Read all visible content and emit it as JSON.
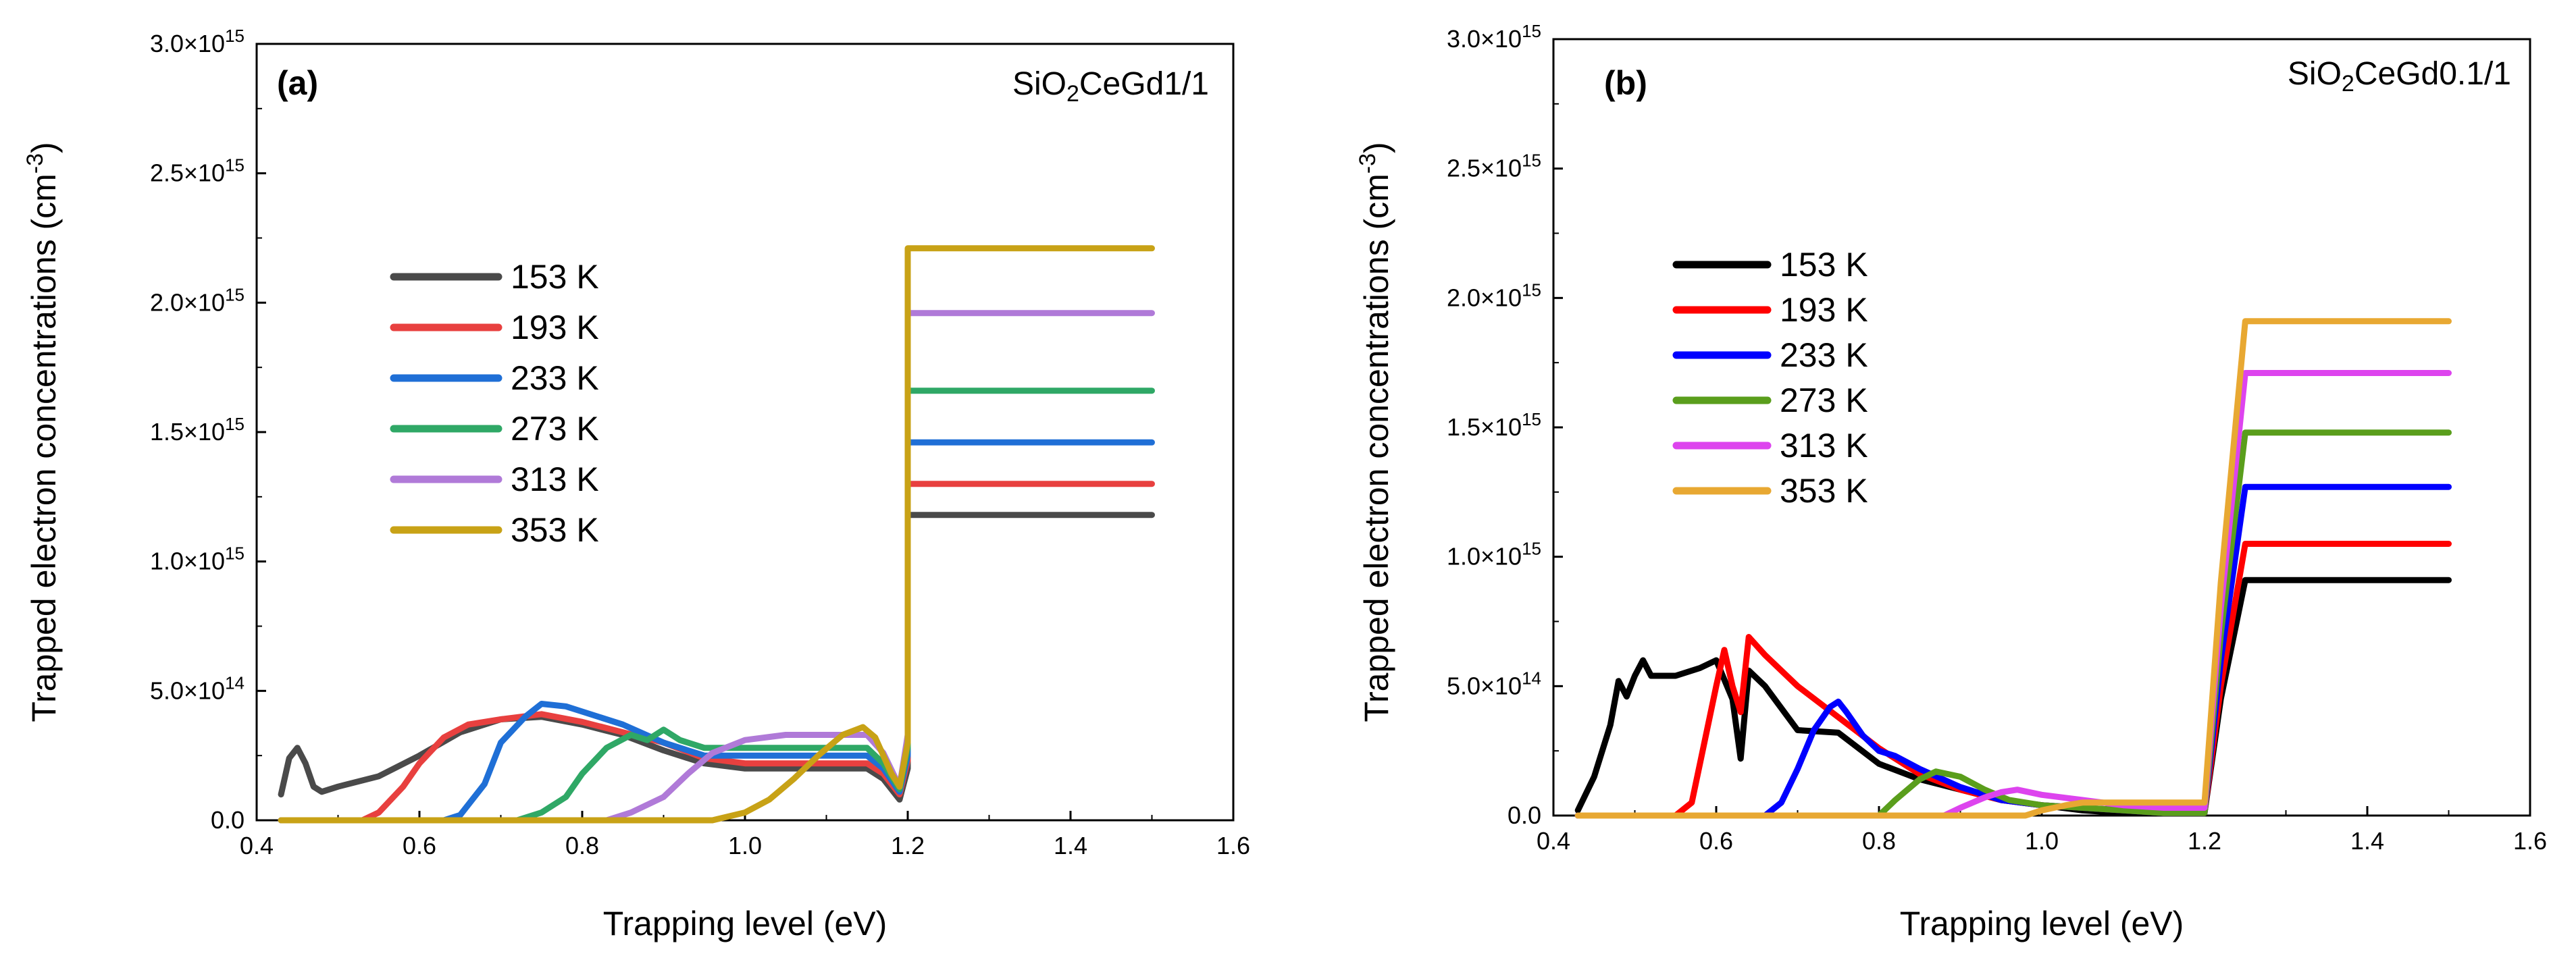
{
  "chart_data": [
    {
      "type": "line",
      "panel": "(a)",
      "sample_label": {
        "main": "SiO",
        "sub": "2",
        "rest": "CeGd1/1"
      },
      "xlabel": "Trapping level (eV)",
      "ylabel": {
        "main": "Trapped electron concentrations (cm",
        "sup": "-3",
        "close": ")"
      },
      "xlim": [
        0.4,
        1.6
      ],
      "ylim": [
        0,
        3000000000000000.0
      ],
      "xticks": [
        0.4,
        0.6,
        0.8,
        1.0,
        1.2,
        1.4,
        1.6
      ],
      "xtick_labels": [
        "0.4",
        "0.6",
        "0.8",
        "1.0",
        "1.2",
        "1.4",
        "1.6"
      ],
      "yticks": [
        {
          "value": 0,
          "mant": "0.0",
          "exp": ""
        },
        {
          "value": 500000000000000.0,
          "mant": "5.0×10",
          "exp": "14"
        },
        {
          "value": 1000000000000000.0,
          "mant": "1.0×10",
          "exp": "15"
        },
        {
          "value": 1500000000000000.0,
          "mant": "1.5×10",
          "exp": "15"
        },
        {
          "value": 2000000000000000.0,
          "mant": "2.0×10",
          "exp": "15"
        },
        {
          "value": 2500000000000000.0,
          "mant": "2.5×10",
          "exp": "15"
        },
        {
          "value": 3000000000000000.0,
          "mant": "3.0×10",
          "exp": "15"
        }
      ],
      "legend_position": "center-left",
      "series": [
        {
          "name": "153 K",
          "color": "#4a4a4a",
          "x": [
            0.43,
            0.44,
            0.45,
            0.46,
            0.47,
            0.48,
            0.5,
            0.55,
            0.6,
            0.65,
            0.7,
            0.75,
            0.8,
            0.85,
            0.9,
            0.95,
            1.0,
            1.05,
            1.1,
            1.15,
            1.17,
            1.19,
            1.2,
            1.2,
            1.5
          ],
          "y": [
            100000000000000.0,
            240000000000000.0,
            280000000000000.0,
            220000000000000.0,
            130000000000000.0,
            110000000000000.0,
            130000000000000.0,
            170000000000000.0,
            250000000000000.0,
            340000000000000.0,
            390000000000000.0,
            400000000000000.0,
            370000000000000.0,
            330000000000000.0,
            270000000000000.0,
            220000000000000.0,
            200000000000000.0,
            200000000000000.0,
            200000000000000.0,
            200000000000000.0,
            160000000000000.0,
            80000000000000.0,
            200000000000000.0,
            1180000000000000.0,
            1180000000000000.0
          ]
        },
        {
          "name": "193 K",
          "color": "#e8403f",
          "x": [
            0.43,
            0.53,
            0.55,
            0.58,
            0.6,
            0.63,
            0.66,
            0.7,
            0.75,
            0.8,
            0.85,
            0.9,
            0.95,
            1.0,
            1.05,
            1.1,
            1.15,
            1.17,
            1.19,
            1.2,
            1.2,
            1.5
          ],
          "y": [
            0,
            0,
            30000000000000.0,
            130000000000000.0,
            220000000000000.0,
            320000000000000.0,
            370000000000000.0,
            390000000000000.0,
            410000000000000.0,
            380000000000000.0,
            340000000000000.0,
            300000000000000.0,
            240000000000000.0,
            220000000000000.0,
            220000000000000.0,
            220000000000000.0,
            220000000000000.0,
            180000000000000.0,
            100000000000000.0,
            230000000000000.0,
            1300000000000000.0,
            1300000000000000.0
          ]
        },
        {
          "name": "233 K",
          "color": "#1f6fd6",
          "x": [
            0.43,
            0.63,
            0.65,
            0.68,
            0.7,
            0.73,
            0.75,
            0.78,
            0.8,
            0.85,
            0.9,
            0.95,
            1.0,
            1.05,
            1.1,
            1.15,
            1.17,
            1.19,
            1.2,
            1.2,
            1.5
          ],
          "y": [
            0,
            0,
            20000000000000.0,
            140000000000000.0,
            300000000000000.0,
            400000000000000.0,
            450000000000000.0,
            440000000000000.0,
            420000000000000.0,
            370000000000000.0,
            300000000000000.0,
            250000000000000.0,
            250000000000000.0,
            250000000000000.0,
            250000000000000.0,
            250000000000000.0,
            200000000000000.0,
            110000000000000.0,
            250000000000000.0,
            1460000000000000.0,
            1460000000000000.0
          ]
        },
        {
          "name": "273 K",
          "color": "#2fa866",
          "x": [
            0.43,
            0.72,
            0.75,
            0.78,
            0.8,
            0.83,
            0.86,
            0.88,
            0.9,
            0.92,
            0.95,
            1.0,
            1.05,
            1.1,
            1.15,
            1.17,
            1.19,
            1.2,
            1.2,
            1.5
          ],
          "y": [
            0,
            0,
            30000000000000.0,
            90000000000000.0,
            180000000000000.0,
            280000000000000.0,
            330000000000000.0,
            310000000000000.0,
            350000000000000.0,
            310000000000000.0,
            280000000000000.0,
            280000000000000.0,
            280000000000000.0,
            280000000000000.0,
            280000000000000.0,
            220000000000000.0,
            120000000000000.0,
            280000000000000.0,
            1660000000000000.0,
            1660000000000000.0
          ]
        },
        {
          "name": "313 K",
          "color": "#b07ad8",
          "x": [
            0.43,
            0.83,
            0.86,
            0.9,
            0.93,
            0.96,
            1.0,
            1.05,
            1.1,
            1.15,
            1.17,
            1.19,
            1.2,
            1.2,
            1.5
          ],
          "y": [
            0,
            0,
            30000000000000.0,
            90000000000000.0,
            180000000000000.0,
            260000000000000.0,
            310000000000000.0,
            330000000000000.0,
            330000000000000.0,
            330000000000000.0,
            260000000000000.0,
            130000000000000.0,
            330000000000000.0,
            1960000000000000.0,
            1960000000000000.0
          ]
        },
        {
          "name": "353 K",
          "color": "#c8a216",
          "x": [
            0.43,
            0.96,
            1.0,
            1.03,
            1.06,
            1.09,
            1.12,
            1.145,
            1.16,
            1.18,
            1.19,
            1.2,
            1.2,
            1.5
          ],
          "y": [
            0,
            0,
            30000000000000.0,
            80000000000000.0,
            160000000000000.0,
            250000000000000.0,
            330000000000000.0,
            360000000000000.0,
            320000000000000.0,
            180000000000000.0,
            130000000000000.0,
            300000000000000.0,
            2210000000000000.0,
            2210000000000000.0
          ]
        }
      ]
    },
    {
      "type": "line",
      "panel": "(b)",
      "sample_label": {
        "main": "SiO",
        "sub": "2",
        "rest": "CeGd0.1/1"
      },
      "xlabel": "Trapping level (eV)",
      "ylabel": {
        "main": "Trapped electron concentrations (cm",
        "sup": "-3",
        "close": ")"
      },
      "xlim": [
        0.4,
        1.6
      ],
      "ylim": [
        0,
        3000000000000000.0
      ],
      "xticks": [
        0.4,
        0.6,
        0.8,
        1.0,
        1.2,
        1.4,
        1.6
      ],
      "xtick_labels": [
        "0.4",
        "0.6",
        "0.8",
        "1.0",
        "1.2",
        "1.4",
        "1.6"
      ],
      "yticks": [
        {
          "value": 0,
          "mant": "0.0",
          "exp": ""
        },
        {
          "value": 500000000000000.0,
          "mant": "5.0×10",
          "exp": "14"
        },
        {
          "value": 1000000000000000.0,
          "mant": "1.0×10",
          "exp": "15"
        },
        {
          "value": 1500000000000000.0,
          "mant": "1.5×10",
          "exp": "15"
        },
        {
          "value": 2000000000000000.0,
          "mant": "2.0×10",
          "exp": "15"
        },
        {
          "value": 2500000000000000.0,
          "mant": "2.5×10",
          "exp": "15"
        },
        {
          "value": 3000000000000000.0,
          "mant": "3.0×10",
          "exp": "15"
        }
      ],
      "legend_position": "upper-left",
      "series": [
        {
          "name": "153 K",
          "color": "#000000",
          "x": [
            0.43,
            0.45,
            0.47,
            0.48,
            0.49,
            0.5,
            0.51,
            0.52,
            0.55,
            0.58,
            0.6,
            0.62,
            0.63,
            0.64,
            0.66,
            0.7,
            0.75,
            0.8,
            0.85,
            0.9,
            0.95,
            1.0,
            1.05,
            1.1,
            1.15,
            1.2,
            1.22,
            1.25,
            1.25,
            1.5
          ],
          "y": [
            20000000000000.0,
            150000000000000.0,
            350000000000000.0,
            520000000000000.0,
            460000000000000.0,
            540000000000000.0,
            600000000000000.0,
            540000000000000.0,
            540000000000000.0,
            570000000000000.0,
            600000000000000.0,
            450000000000000.0,
            220000000000000.0,
            560000000000000.0,
            500000000000000.0,
            330000000000000.0,
            320000000000000.0,
            200000000000000.0,
            140000000000000.0,
            100000000000000.0,
            60000000000000.0,
            40000000000000.0,
            20000000000000.0,
            10000000000000.0,
            10000000000000.0,
            10000000000000.0,
            450000000000000.0,
            910000000000000.0,
            910000000000000.0,
            910000000000000.0
          ]
        },
        {
          "name": "193 K",
          "color": "#ff0000",
          "x": [
            0.43,
            0.55,
            0.57,
            0.58,
            0.6,
            0.61,
            0.62,
            0.63,
            0.64,
            0.66,
            0.7,
            0.75,
            0.8,
            0.85,
            0.9,
            0.95,
            1.0,
            1.05,
            1.1,
            1.15,
            1.2,
            1.22,
            1.25,
            1.25,
            1.5
          ],
          "y": [
            0,
            0,
            50000000000000.0,
            200000000000000.0,
            500000000000000.0,
            640000000000000.0,
            500000000000000.0,
            400000000000000.0,
            690000000000000.0,
            620000000000000.0,
            500000000000000.0,
            380000000000000.0,
            260000000000000.0,
            160000000000000.0,
            100000000000000.0,
            60000000000000.0,
            40000000000000.0,
            30000000000000.0,
            20000000000000.0,
            10000000000000.0,
            10000000000000.0,
            500000000000000.0,
            1050000000000000.0,
            1050000000000000.0,
            1050000000000000.0
          ]
        },
        {
          "name": "233 K",
          "color": "#0000ff",
          "x": [
            0.43,
            0.66,
            0.68,
            0.7,
            0.72,
            0.74,
            0.75,
            0.76,
            0.78,
            0.8,
            0.82,
            0.85,
            0.9,
            0.95,
            1.0,
            1.05,
            1.1,
            1.15,
            1.2,
            1.22,
            1.25,
            1.25,
            1.5
          ],
          "y": [
            0,
            0,
            50000000000000.0,
            180000000000000.0,
            330000000000000.0,
            420000000000000.0,
            440000000000000.0,
            400000000000000.0,
            310000000000000.0,
            250000000000000.0,
            230000000000000.0,
            180000000000000.0,
            110000000000000.0,
            60000000000000.0,
            40000000000000.0,
            30000000000000.0,
            20000000000000.0,
            10000000000000.0,
            10000000000000.0,
            600000000000000.0,
            1270000000000000.0,
            1270000000000000.0,
            1270000000000000.0
          ]
        },
        {
          "name": "273 K",
          "color": "#5a9e1c",
          "x": [
            0.43,
            0.8,
            0.82,
            0.85,
            0.87,
            0.9,
            0.93,
            0.96,
            1.0,
            1.05,
            1.1,
            1.15,
            1.2,
            1.22,
            1.25,
            1.25,
            1.5
          ],
          "y": [
            0,
            0,
            60000000000000.0,
            140000000000000.0,
            170000000000000.0,
            150000000000000.0,
            100000000000000.0,
            60000000000000.0,
            40000000000000.0,
            30000000000000.0,
            20000000000000.0,
            10000000000000.0,
            10000000000000.0,
            700000000000000.0,
            1480000000000000.0,
            1480000000000000.0,
            1480000000000000.0
          ]
        },
        {
          "name": "313 K",
          "color": "#dd44ee",
          "x": [
            0.43,
            0.88,
            0.9,
            0.93,
            0.95,
            0.97,
            1.0,
            1.05,
            1.1,
            1.15,
            1.2,
            1.22,
            1.25,
            1.25,
            1.5
          ],
          "y": [
            0,
            0,
            30000000000000.0,
            70000000000000.0,
            90000000000000.0,
            100000000000000.0,
            80000000000000.0,
            60000000000000.0,
            40000000000000.0,
            30000000000000.0,
            30000000000000.0,
            800000000000000.0,
            1710000000000000.0,
            1710000000000000.0,
            1710000000000000.0
          ]
        },
        {
          "name": "353 K",
          "color": "#e8a832",
          "x": [
            0.43,
            0.98,
            1.0,
            1.03,
            1.05,
            1.08,
            1.1,
            1.15,
            1.2,
            1.22,
            1.25,
            1.25,
            1.5
          ],
          "y": [
            0,
            0,
            20000000000000.0,
            40000000000000.0,
            50000000000000.0,
            50000000000000.0,
            50000000000000.0,
            50000000000000.0,
            50000000000000.0,
            900000000000000.0,
            1910000000000000.0,
            1910000000000000.0,
            1910000000000000.0
          ]
        }
      ]
    }
  ]
}
